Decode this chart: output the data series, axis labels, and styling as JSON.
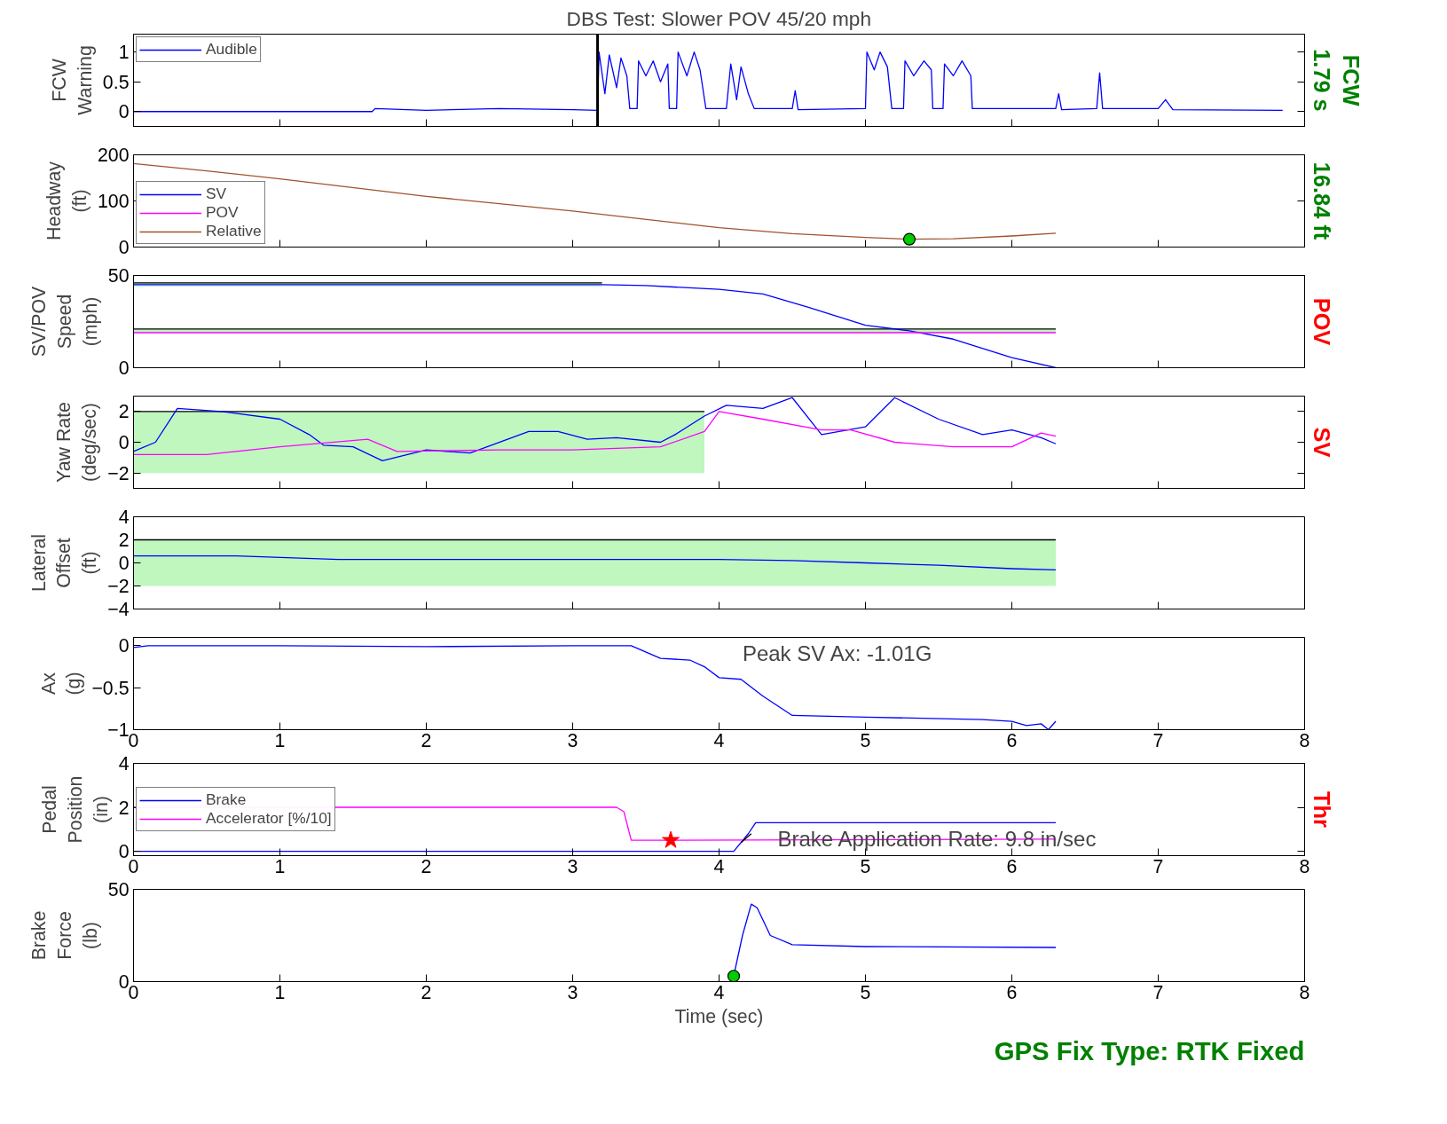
{
  "chart_data": [
    {
      "type": "line",
      "title": "DBS Test: Slower POV 45/20 mph",
      "ylabel": "FCW\nWarning",
      "y2label": "FCW\n1.79 s",
      "xlim": [
        0,
        8
      ],
      "xticks": [
        0,
        1,
        2,
        3,
        4,
        5,
        6,
        7,
        8
      ],
      "ylim": [
        -0.25,
        1.3
      ],
      "yticks": [
        0,
        0.5,
        1
      ],
      "tick_labels": "y",
      "legend": "top left",
      "ref_lines": [
        {
          "axis": "x",
          "value": 3.17,
          "color": "#000000"
        }
      ],
      "series": [
        {
          "name": "Audible",
          "color": "#0000ff",
          "x": [
            0,
            1.63,
            1.65,
            2,
            2.5,
            3.0,
            3.17,
            3.18,
            3.22,
            3.25,
            3.3,
            3.33,
            3.37,
            3.39,
            3.44,
            3.45,
            3.5,
            3.55,
            3.6,
            3.65,
            3.66,
            3.71,
            3.72,
            3.78,
            3.83,
            3.87,
            3.91,
            4.05,
            4.08,
            4.12,
            4.15,
            4.2,
            4.24,
            4.5,
            4.52,
            4.54,
            5.0,
            5.01,
            5.06,
            5.1,
            5.15,
            5.18,
            5.26,
            5.27,
            5.33,
            5.4,
            5.45,
            5.46,
            5.53,
            5.54,
            5.6,
            5.66,
            5.72,
            5.73,
            6.3,
            6.32,
            6.34,
            6.58,
            6.6,
            6.62,
            7.0,
            7.05,
            7.1,
            7.85
          ],
          "values": [
            0,
            0,
            0.05,
            0.02,
            0.05,
            0.03,
            0.02,
            1.0,
            0.3,
            0.95,
            0.4,
            0.9,
            0.6,
            0.05,
            0.05,
            0.85,
            0.6,
            0.85,
            0.5,
            0.8,
            0.05,
            0.05,
            1.0,
            0.6,
            1.0,
            0.7,
            0.05,
            0.05,
            0.8,
            0.2,
            0.75,
            0.3,
            0.05,
            0.05,
            0.35,
            0.03,
            0.05,
            1.0,
            0.7,
            1.0,
            0.75,
            0.05,
            0.05,
            0.85,
            0.6,
            0.85,
            0.7,
            0.05,
            0.05,
            0.8,
            0.6,
            0.85,
            0.6,
            0.05,
            0.05,
            0.3,
            0.03,
            0.05,
            0.65,
            0.05,
            0.05,
            0.2,
            0.03,
            0.02
          ]
        }
      ]
    },
    {
      "type": "line",
      "ylabel": "Headway\n(ft)",
      "y2label": "16.84 ft",
      "xlim": [
        0,
        8
      ],
      "xticks": [
        0,
        1,
        2,
        3,
        4,
        5,
        6,
        7,
        8
      ],
      "ylim": [
        0,
        200
      ],
      "yticks": [
        0,
        100,
        200
      ],
      "tick_labels": "y",
      "legend": "bottom left",
      "series": [
        {
          "name": "SV",
          "color": "#0000ff"
        },
        {
          "name": "POV",
          "color": "#ff00ff"
        },
        {
          "name": "Relative",
          "color": "#a0522d",
          "x": [
            0,
            0.5,
            1,
            2,
            3,
            4,
            4.5,
            5,
            5.3,
            5.6,
            6,
            6.3
          ],
          "values": [
            181,
            165,
            148,
            110,
            78,
            42,
            29,
            21,
            17,
            18,
            24,
            30
          ]
        },
        {
          "type": "scatter",
          "marker": "circle",
          "color": "#00cc00",
          "x": [
            5.3
          ],
          "values": [
            17
          ]
        }
      ]
    },
    {
      "type": "line",
      "ylabel": "SV/POV\nSpeed\n(mph)",
      "y2label": "POV",
      "xlim": [
        0,
        8
      ],
      "xticks": [
        0,
        1,
        2,
        3,
        4,
        5,
        6,
        7,
        8
      ],
      "ylim": [
        0,
        50
      ],
      "yticks": [
        0,
        50
      ],
      "tick_labels": "y",
      "series": [
        {
          "color": "#000000",
          "x": [
            0,
            3.2
          ],
          "values": [
            46,
            46
          ],
          "lower": [
            44,
            44
          ],
          "upper": [
            46,
            46
          ]
        },
        {
          "color": "#000000",
          "x": [
            0,
            6.3
          ],
          "values": [
            21,
            21
          ],
          "lower": [
            19,
            19
          ],
          "upper": [
            21,
            21
          ]
        },
        {
          "color": "#0000ff",
          "x": [
            0,
            3.2,
            3.5,
            4.0,
            4.3,
            4.6,
            5.0,
            5.3,
            5.6,
            6.0,
            6.3
          ],
          "values": [
            45,
            45,
            44.5,
            42.5,
            40,
            33,
            23,
            20,
            15.5,
            5.5,
            0
          ]
        },
        {
          "color": "#ff00ff",
          "x": [
            0,
            6.3
          ],
          "values": [
            19,
            19
          ]
        }
      ]
    },
    {
      "type": "line",
      "ylabel": "Yaw Rate\n(deg/sec)",
      "y2label": "SV",
      "xlim": [
        0,
        8
      ],
      "xticks": [
        0,
        1,
        2,
        3,
        4,
        5,
        6,
        7,
        8
      ],
      "ylim": [
        -3,
        3
      ],
      "yticks": [
        -2,
        0,
        2
      ],
      "tick_labels": "y",
      "series": [
        {
          "color": "#000000",
          "x": [
            0,
            3.9
          ],
          "values": [
            2,
            2
          ],
          "lower": [
            -2,
            -2
          ],
          "upper": [
            2,
            2
          ]
        },
        {
          "color": "#0000ff",
          "x": [
            0,
            0.15,
            0.3,
            0.6,
            1.0,
            1.2,
            1.3,
            1.5,
            1.7,
            2.0,
            2.3,
            2.7,
            2.9,
            3.1,
            3.3,
            3.6,
            3.7,
            3.9,
            4.05,
            4.3,
            4.5,
            4.7,
            5.0,
            5.2,
            5.5,
            5.8,
            6.0,
            6.2,
            6.3
          ],
          "values": [
            -0.6,
            0,
            2.2,
            2,
            1.5,
            0.5,
            -0.2,
            -0.3,
            -1.2,
            -0.5,
            -0.7,
            0.7,
            0.7,
            0.2,
            0.3,
            0,
            0.5,
            1.7,
            2.4,
            2.2,
            2.9,
            0.5,
            1.0,
            2.9,
            1.5,
            0.5,
            0.8,
            0.3,
            -0.1
          ]
        },
        {
          "color": "#ff00ff",
          "x": [
            0,
            0.5,
            1.0,
            1.6,
            1.8,
            2.5,
            3.0,
            3.6,
            3.9,
            4.0,
            4.3,
            4.7,
            4.9,
            5.2,
            5.6,
            6.0,
            6.2,
            6.3
          ],
          "values": [
            -0.8,
            -0.8,
            -0.3,
            0.2,
            -0.6,
            -0.5,
            -0.5,
            -0.3,
            0.7,
            2.0,
            1.5,
            0.8,
            0.8,
            0,
            -0.3,
            -0.3,
            0.6,
            0.4
          ]
        }
      ]
    },
    {
      "type": "line",
      "ylabel": "Lateral\nOffset\n(ft)",
      "xlim": [
        0,
        8
      ],
      "xticks": [
        0,
        1,
        2,
        3,
        4,
        5,
        6,
        7,
        8
      ],
      "ylim": [
        -4,
        4
      ],
      "yticks": [
        -4,
        -2,
        0,
        2,
        4
      ],
      "tick_labels": "y",
      "series": [
        {
          "color": "#000000",
          "x": [
            0,
            6.3
          ],
          "values": [
            2,
            2
          ],
          "lower": [
            -2,
            -2
          ],
          "upper": [
            2,
            2
          ]
        },
        {
          "color": "#0000ff",
          "x": [
            0,
            0.7,
            1.4,
            3.0,
            4.0,
            4.5,
            5.0,
            5.5,
            6.0,
            6.3
          ],
          "values": [
            0.6,
            0.6,
            0.3,
            0.3,
            0.3,
            0.2,
            0,
            -0.2,
            -0.5,
            -0.6
          ]
        }
      ]
    },
    {
      "type": "line",
      "ylabel": "Ax\n(g)",
      "xlim": [
        0,
        8
      ],
      "xticks": [
        0,
        1,
        2,
        3,
        4,
        5,
        6,
        7,
        8
      ],
      "ylim": [
        -1,
        0.1
      ],
      "yticks": [
        -1,
        -0.5,
        0
      ],
      "annotations": [
        "Peak SV Ax: -1.01G"
      ],
      "series": [
        {
          "color": "#0000ff",
          "x": [
            0,
            0.1,
            0.5,
            1.0,
            2.0,
            3.0,
            3.4,
            3.6,
            3.8,
            3.9,
            4.0,
            4.15,
            4.3,
            4.5,
            5.0,
            5.8,
            6.0,
            6.1,
            6.2,
            6.25,
            6.3
          ],
          "values": [
            -0.02,
            0,
            0,
            0,
            -0.01,
            0,
            0,
            -0.15,
            -0.17,
            -0.25,
            -0.38,
            -0.4,
            -0.6,
            -0.83,
            -0.85,
            -0.88,
            -0.9,
            -0.95,
            -0.93,
            -1.0,
            -0.9
          ]
        }
      ]
    },
    {
      "type": "line",
      "ylabel": "Pedal\nPosition\n(in)",
      "y2label": "Thr",
      "xlim": [
        0,
        8
      ],
      "xticks": [
        0,
        1,
        2,
        3,
        4,
        5,
        6,
        7,
        8
      ],
      "ylim": [
        -0.2,
        4
      ],
      "yticks": [
        0,
        2,
        4
      ],
      "legend": "left",
      "annotations": [
        {
          "text": "Brake Application Rate: 9.8 in/sec",
          "x": 4.4,
          "y": 0.55
        }
      ],
      "series": [
        {
          "name": "Brake",
          "color": "#0000ff",
          "x": [
            0,
            4.1,
            4.2,
            4.25,
            6.3
          ],
          "values": [
            0,
            0,
            0.8,
            1.3,
            1.3
          ]
        },
        {
          "name": "Accelerator [%/10]",
          "color": "#ff00ff",
          "x": [
            0,
            3.3,
            3.35,
            3.4,
            6.3
          ],
          "values": [
            2,
            2,
            1.8,
            0.5,
            0.55
          ]
        },
        {
          "type": "scatter",
          "marker": "star",
          "color": "#ff0000",
          "x": [
            3.67
          ],
          "values": [
            0.5
          ]
        },
        {
          "color": "#000000",
          "x": [
            4.15,
            4.22
          ],
          "values": [
            0.4,
            0.8
          ]
        }
      ]
    },
    {
      "type": "line",
      "ylabel": "Brake\nForce\n(lb)",
      "xlabel": "Time (sec)",
      "xlim": [
        0,
        8
      ],
      "xticks": [
        0,
        1,
        2,
        3,
        4,
        5,
        6,
        7,
        8
      ],
      "ylim": [
        0,
        50
      ],
      "yticks": [
        0,
        50
      ],
      "annotations": [
        "GPS Fix Type: RTK Fixed"
      ],
      "series": [
        {
          "color": "#0000ff",
          "x": [
            4.1,
            4.16,
            4.22,
            4.26,
            4.35,
            4.5,
            5.0,
            6.3
          ],
          "values": [
            3,
            25,
            42,
            40,
            25,
            20,
            19,
            18.5
          ]
        },
        {
          "type": "scatter",
          "marker": "circle",
          "color": "#00cc00",
          "x": [
            4.1
          ],
          "values": [
            3
          ]
        }
      ]
    }
  ]
}
